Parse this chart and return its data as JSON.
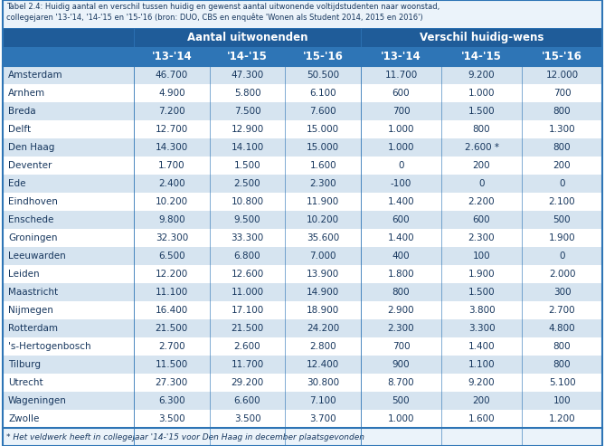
{
  "title_line1": "Tabel 2.4: Huidig aantal en verschil tussen huidig en gewenst aantal uitwonende voltijdstudenten naar woonstad,",
  "title_line2": "collegejaren '13-'14, '14-'15 en '15-'16 (bron: DUO, CBS en enquête 'Wonen als Student 2014, 2015 en 2016')",
  "col_header_1": "Aantal uitwonenden",
  "col_header_2": "Verschil huidig-wens",
  "sub_headers": [
    "'13-'14",
    "'14-'15",
    "'15-'16",
    "'13-'14",
    "'14-'15",
    "'15-'16"
  ],
  "cities": [
    "Amsterdam",
    "Arnhem",
    "Breda",
    "Delft",
    "Den Haag",
    "Deventer",
    "Ede",
    "Eindhoven",
    "Enschede",
    "Groningen",
    "Leeuwarden",
    "Leiden",
    "Maastricht",
    "Nijmegen",
    "Rotterdam",
    "'s-Hertogenbosch",
    "Tilburg",
    "Utrecht",
    "Wageningen",
    "Zwolle"
  ],
  "aantal_13_14": [
    "46.700",
    "4.900",
    "7.200",
    "12.700",
    "14.300",
    "1.700",
    "2.400",
    "10.200",
    "9.800",
    "32.300",
    "6.500",
    "12.200",
    "11.100",
    "16.400",
    "21.500",
    "2.700",
    "11.500",
    "27.300",
    "6.300",
    "3.500"
  ],
  "aantal_14_15": [
    "47.300",
    "5.800",
    "7.500",
    "12.900",
    "14.100",
    "1.500",
    "2.500",
    "10.800",
    "9.500",
    "33.300",
    "6.800",
    "12.600",
    "11.000",
    "17.100",
    "21.500",
    "2.600",
    "11.700",
    "29.200",
    "6.600",
    "3.500"
  ],
  "aantal_15_16": [
    "50.500",
    "6.100",
    "7.600",
    "15.000",
    "15.000",
    "1.600",
    "2.300",
    "11.900",
    "10.200",
    "35.600",
    "7.000",
    "13.900",
    "14.900",
    "18.900",
    "24.200",
    "2.800",
    "12.400",
    "30.800",
    "7.100",
    "3.700"
  ],
  "verschil_13_14": [
    "11.700",
    "600",
    "700",
    "1.000",
    "1.000",
    "0",
    "-100",
    "1.400",
    "600",
    "1.400",
    "400",
    "1.800",
    "800",
    "2.900",
    "2.300",
    "700",
    "900",
    "8.700",
    "500",
    "1.000"
  ],
  "verschil_14_15": [
    "9.200",
    "1.000",
    "1.500",
    "800",
    "2.600 *",
    "200",
    "0",
    "2.200",
    "600",
    "2.300",
    "100",
    "1.900",
    "1.500",
    "3.800",
    "3.300",
    "1.400",
    "1.100",
    "9.200",
    "200",
    "1.600"
  ],
  "verschil_15_16": [
    "12.000",
    "700",
    "800",
    "1.300",
    "800",
    "200",
    "0",
    "2.100",
    "500",
    "1.900",
    "0",
    "2.000",
    "300",
    "2.700",
    "4.800",
    "800",
    "800",
    "5.100",
    "100",
    "1.200"
  ],
  "footnote": "* Het veldwerk heeft in collegejaar '14-'15 voor Den Haag in december plaatsgevonden",
  "header_bg": "#1F5C99",
  "subheader_bg": "#2E75B6",
  "row_bg_even": "#D6E4F0",
  "row_bg_odd": "#FFFFFF",
  "text_color_header": "#FFFFFF",
  "text_color_body": "#17375E",
  "border_color": "#2E75B6",
  "title_bg": "#EBF3FA",
  "title_color": "#17375E",
  "footnote_color": "#17375E"
}
